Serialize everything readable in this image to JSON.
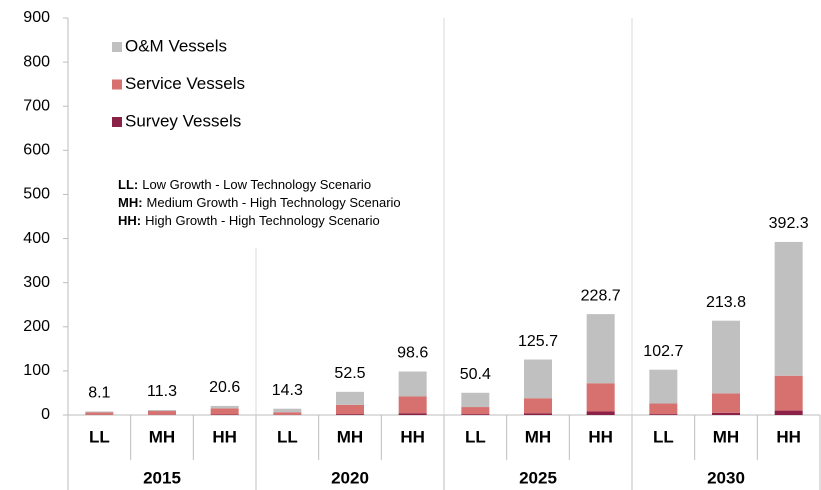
{
  "chart_data": {
    "type": "stacked-bar",
    "categories": [
      "LL",
      "MH",
      "HH",
      "LL",
      "MH",
      "HH",
      "LL",
      "MH",
      "HH",
      "LL",
      "MH",
      "HH"
    ],
    "groups": [
      "2015",
      "2020",
      "2025",
      "2030"
    ],
    "series": [
      {
        "name": "Survey Vessels",
        "color": "#8b2146",
        "values": [
          0.3,
          0.5,
          1,
          0.5,
          2,
          4,
          2,
          4,
          8,
          2,
          5,
          10
        ]
      },
      {
        "name": "Service Vessels",
        "color": "#d6716f",
        "values": [
          5.5,
          8.5,
          14,
          5.8,
          21,
          38,
          16,
          34,
          64,
          24,
          44,
          79
        ]
      },
      {
        "name": "O&M Vessels",
        "color": "#c0c0c0",
        "values": [
          2.3,
          2.3,
          5.6,
          8.0,
          29.5,
          56.6,
          32.4,
          87.7,
          156.7,
          76.7,
          164.8,
          303.3
        ]
      }
    ],
    "totals": [
      8.1,
      11.3,
      20.6,
      14.3,
      52.5,
      98.6,
      50.4,
      125.7,
      228.7,
      102.7,
      213.8,
      392.3
    ],
    "ylim": [
      0,
      900
    ],
    "yticks": [
      0,
      100,
      200,
      300,
      400,
      500,
      600,
      700,
      800,
      900
    ],
    "annotations": [
      {
        "key": "LL:",
        "text": "Low Growth - Low Technology Scenario"
      },
      {
        "key": "MH:",
        "text": "Medium Growth - High Technology Scenario"
      },
      {
        "key": "HH:",
        "text": "High Growth - High Technology Scenario"
      }
    ]
  }
}
